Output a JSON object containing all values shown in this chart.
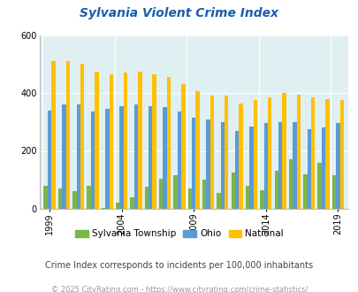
{
  "title": "Sylvania Violent Crime Index",
  "years": [
    1999,
    2000,
    2001,
    2002,
    2003,
    2004,
    2005,
    2006,
    2007,
    2008,
    2009,
    2010,
    2011,
    2012,
    2013,
    2014,
    2015,
    2016,
    2017,
    2018,
    2019
  ],
  "sylvania": [
    80,
    70,
    60,
    80,
    3,
    20,
    40,
    75,
    105,
    115,
    70,
    100,
    55,
    125,
    80,
    65,
    130,
    170,
    120,
    160,
    115
  ],
  "ohio": [
    340,
    360,
    360,
    335,
    345,
    355,
    360,
    355,
    350,
    335,
    315,
    310,
    300,
    270,
    285,
    295,
    300,
    300,
    275,
    280,
    295
  ],
  "national": [
    510,
    510,
    500,
    475,
    465,
    470,
    475,
    465,
    455,
    430,
    405,
    390,
    390,
    365,
    375,
    385,
    400,
    395,
    385,
    380,
    375
  ],
  "sylvania_color": "#7ab648",
  "ohio_color": "#5b9bd5",
  "national_color": "#ffc000",
  "background_color": "#e0eff2",
  "ylim": [
    0,
    600
  ],
  "yticks": [
    0,
    200,
    400,
    600
  ],
  "xtick_years": [
    1999,
    2004,
    2009,
    2014,
    2019
  ],
  "subtitle": "Crime Index corresponds to incidents per 100,000 inhabitants",
  "footer": "© 2025 CityRating.com - https://www.cityrating.com/crime-statistics/",
  "title_color": "#1a5fa8",
  "subtitle_color": "#444444",
  "footer_color": "#999999",
  "grid_color": "#ffffff"
}
